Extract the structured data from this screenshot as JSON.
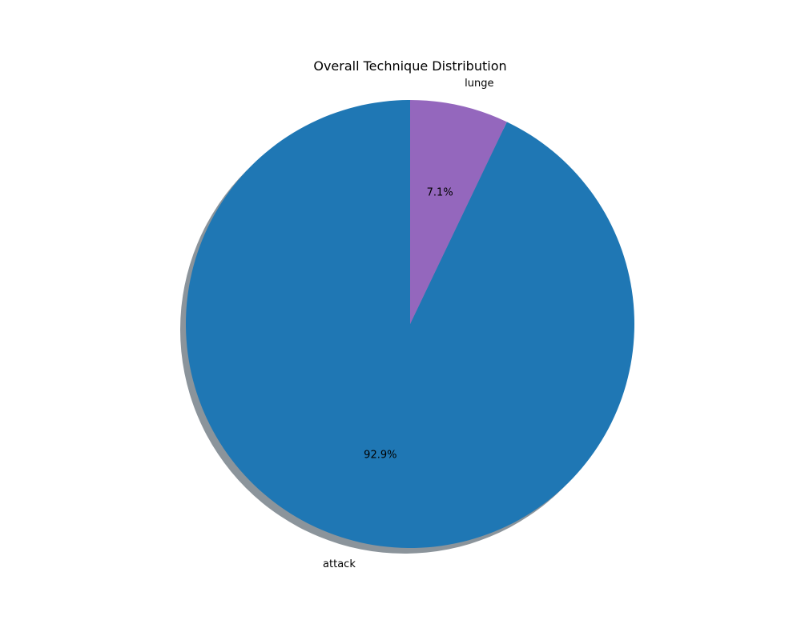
{
  "chart_data": {
    "type": "pie",
    "title": "Overall Technique Distribution",
    "categories": [
      "attack",
      "lunge"
    ],
    "values": [
      92.9,
      7.1
    ],
    "percent_labels": [
      "92.9%",
      "7.1%"
    ],
    "colors": [
      "#1f77b4",
      "#9467bd"
    ],
    "start_angle_deg": 90,
    "direction": "counterclockwise",
    "shadow": true,
    "shadow_color": "#4d5a66",
    "legend": "none"
  }
}
